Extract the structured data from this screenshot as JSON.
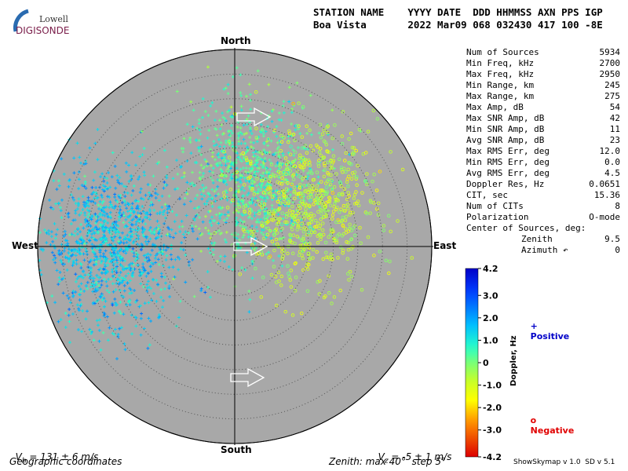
{
  "logo": {
    "top": "Lowell",
    "bottom": "DIGISONDE"
  },
  "header": {
    "line1": "STATION NAME    YYYY DATE  DDD HHMMSS AXN PPS IGP",
    "line2": "Boa Vista       2022 Mar09 068 032430 417 100 -8E"
  },
  "stats": [
    {
      "label": "Num of Sources",
      "value": "5934"
    },
    {
      "label": "Min Freq, kHz",
      "value": "2700"
    },
    {
      "label": "Max Freq, kHz",
      "value": "2950"
    },
    {
      "label": "Min Range, km",
      "value": "245"
    },
    {
      "label": "Max Range, km",
      "value": "275"
    },
    {
      "label": "Max Amp, dB",
      "value": "54"
    },
    {
      "label": "Max SNR Amp, dB",
      "value": "42"
    },
    {
      "label": "Min SNR Amp, dB",
      "value": "11"
    },
    {
      "label": "Avg SNR Amp, dB",
      "value": "23"
    },
    {
      "label": "Max RMS Err, deg",
      "value": "12.0"
    },
    {
      "label": "Min RMS Err, deg",
      "value": "0.0"
    },
    {
      "label": "Avg RMS Err, deg",
      "value": "4.5"
    },
    {
      "label": "Doppler Res, Hz",
      "value": "0.0651"
    },
    {
      "label": "CIT, sec",
      "value": "15.36"
    },
    {
      "label": "Num of CITs",
      "value": "8"
    },
    {
      "label": "Polarization",
      "value": "O-mode"
    }
  ],
  "center": {
    "title": "Center of Sources, deg:",
    "zenith_label": "Zenith",
    "zenith_value": "9.5",
    "azimuth_label": "Azimuth ↶",
    "azimuth_value": "0"
  },
  "compass": {
    "north": "North",
    "south": "South",
    "east": "East",
    "west": "West"
  },
  "footer": {
    "vh_main": "V",
    "vh_sub": "h",
    "vh_rest": " = 131 ± 6 m/s",
    "vz_main": "V",
    "vz_sub": "z",
    "vz_rest": " = -5 ± 1 m/s",
    "coords": "Geographic coordinates",
    "zenith": "Zenith: max 40°  step 5°",
    "version": "ShowSkymap v 1.0  SD v 5.1"
  },
  "legend": {
    "positive_symbol": "+",
    "positive_label": "Positive",
    "negative_symbol": "o",
    "negative_label": "Negative",
    "positive_color": "#0000c8",
    "negative_color": "#e00000"
  },
  "colorbar": {
    "title": "Doppler, Hz",
    "ticks": [
      "4.2",
      "3.0",
      "2.0",
      "1.0",
      "0",
      "-1.0",
      "-2.0",
      "-3.0",
      "-4.2"
    ],
    "min": -4.2,
    "max": 4.2
  },
  "colors": {
    "plot_background": "#a8a8a8",
    "logo_arc": "#2a6bb0",
    "logo_text": "#7a1e4a"
  },
  "chart_data": {
    "type": "scatter",
    "title": "",
    "projection": "polar sky map (zenith angle vs azimuth)",
    "zenith_max_deg": 40,
    "zenith_step_deg": 5,
    "color_encoding": "Doppler, Hz",
    "color_range": [
      -4.2,
      4.2
    ],
    "clusters": [
      {
        "name": "",
        "zenith_center": 25,
        "azimuth_center": 270,
        "doppler": 1.5,
        "symbol": "+",
        "count": 1200
      },
      {
        "name": "",
        "zenith_center": 14,
        "azimuth_center": 10,
        "doppler": 0.5,
        "symbol": "+",
        "count": 900
      },
      {
        "name": "",
        "zenith_center": 17,
        "azimuth_center": 60,
        "doppler": -0.8,
        "symbol": "o",
        "count": 700
      }
    ]
  }
}
